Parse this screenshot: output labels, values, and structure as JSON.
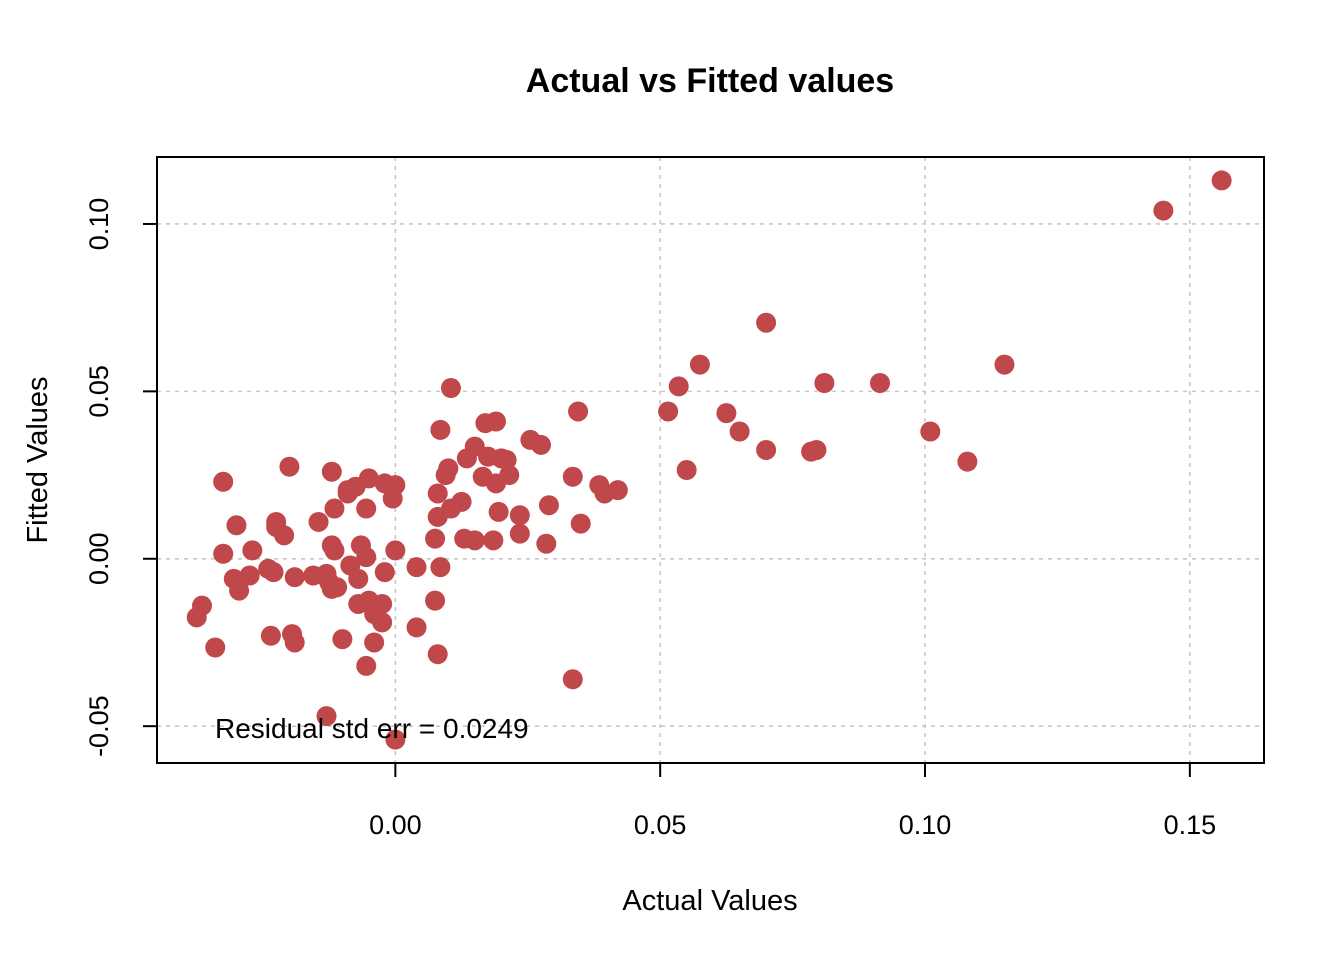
{
  "chart_data": {
    "type": "scatter",
    "title": "Actual vs Fitted values",
    "xlabel": "Actual Values",
    "ylabel": "Fitted Values",
    "xlim": [
      -0.045,
      0.164
    ],
    "ylim": [
      -0.061,
      0.12
    ],
    "x_ticks": [
      0.0,
      0.05,
      0.1,
      0.15
    ],
    "x_tick_labels": [
      "0.00",
      "0.05",
      "0.10",
      "0.15"
    ],
    "y_ticks": [
      -0.05,
      0.0,
      0.05,
      0.1
    ],
    "y_tick_labels": [
      "-0.05",
      "0.00",
      "0.05",
      "0.10"
    ],
    "grid": true,
    "point_color": "#C0474A",
    "annotation": "Residual std err =  0.0249",
    "points": [
      [
        0.156,
        0.113
      ],
      [
        0.145,
        0.104
      ],
      [
        0.115,
        0.058
      ],
      [
        0.108,
        0.029
      ],
      [
        0.101,
        0.038
      ],
      [
        0.0915,
        0.0525
      ],
      [
        0.081,
        0.0525
      ],
      [
        0.0795,
        0.0325
      ],
      [
        0.0785,
        0.032
      ],
      [
        0.07,
        0.0705
      ],
      [
        0.07,
        0.0325
      ],
      [
        0.065,
        0.038
      ],
      [
        0.0625,
        0.0435
      ],
      [
        0.0575,
        0.058
      ],
      [
        0.0535,
        0.0515
      ],
      [
        0.0515,
        0.044
      ],
      [
        0.055,
        0.0265
      ],
      [
        0.042,
        0.0205
      ],
      [
        0.0385,
        0.022
      ],
      [
        0.0395,
        0.0195
      ],
      [
        0.0345,
        0.044
      ],
      [
        0.035,
        0.0105
      ],
      [
        0.0335,
        0.0245
      ],
      [
        0.0335,
        -0.036
      ],
      [
        0.029,
        0.016
      ],
      [
        0.0285,
        0.0045
      ],
      [
        0.0255,
        0.0355
      ],
      [
        0.0275,
        0.034
      ],
      [
        0.0235,
        0.013
      ],
      [
        0.0235,
        0.0075
      ],
      [
        0.0215,
        0.025
      ],
      [
        0.021,
        0.0295
      ],
      [
        0.02,
        0.03
      ],
      [
        0.019,
        0.041
      ],
      [
        0.019,
        0.0225
      ],
      [
        0.0185,
        0.0055
      ],
      [
        0.0195,
        0.014
      ],
      [
        0.0175,
        0.0305
      ],
      [
        0.017,
        0.0405
      ],
      [
        0.0165,
        0.0245
      ],
      [
        0.015,
        0.0335
      ],
      [
        0.0135,
        0.03
      ],
      [
        0.0125,
        0.017
      ],
      [
        0.015,
        0.0055
      ],
      [
        0.013,
        0.006
      ],
      [
        0.0105,
        0.051
      ],
      [
        0.01,
        0.027
      ],
      [
        0.0095,
        0.025
      ],
      [
        0.0105,
        0.015
      ],
      [
        0.0085,
        0.0385
      ],
      [
        0.008,
        0.0195
      ],
      [
        0.008,
        0.0125
      ],
      [
        0.0075,
        0.006
      ],
      [
        0.0085,
        -0.0025
      ],
      [
        0.0075,
        -0.0125
      ],
      [
        0.008,
        -0.0285
      ],
      [
        0.004,
        -0.0025
      ],
      [
        0.004,
        -0.0205
      ],
      [
        0.0,
        0.0025
      ],
      [
        0.0,
        0.022
      ],
      [
        -0.0005,
        0.018
      ],
      [
        -0.002,
        0.0225
      ],
      [
        -0.002,
        -0.004
      ],
      [
        -0.0025,
        -0.0135
      ],
      [
        -0.0025,
        -0.019
      ],
      [
        -0.004,
        -0.025
      ],
      [
        -0.004,
        -0.0165
      ],
      [
        -0.005,
        0.024
      ],
      [
        -0.0055,
        0.015
      ],
      [
        -0.0055,
        0.0005
      ],
      [
        -0.005,
        -0.0125
      ],
      [
        -0.0055,
        -0.032
      ],
      [
        -0.0065,
        0.004
      ],
      [
        -0.007,
        -0.006
      ],
      [
        -0.007,
        -0.0135
      ],
      [
        -0.0075,
        0.0215
      ],
      [
        -0.0085,
        -0.002
      ],
      [
        -0.009,
        0.0195
      ],
      [
        -0.009,
        0.0205
      ],
      [
        -0.01,
        -0.024
      ],
      [
        -0.011,
        -0.0085
      ],
      [
        -0.0115,
        0.0025
      ],
      [
        -0.012,
        0.004
      ],
      [
        -0.0115,
        0.015
      ],
      [
        -0.012,
        0.026
      ],
      [
        -0.012,
        -0.009
      ],
      [
        -0.0125,
        -0.007
      ],
      [
        -0.013,
        -0.0045
      ],
      [
        -0.013,
        -0.047
      ],
      [
        -0.0145,
        0.011
      ],
      [
        -0.0155,
        -0.005
      ],
      [
        -0.019,
        -0.0055
      ],
      [
        -0.019,
        -0.025
      ],
      [
        -0.0195,
        -0.0225
      ],
      [
        -0.02,
        0.0275
      ],
      [
        -0.021,
        0.007
      ],
      [
        -0.0225,
        0.011
      ],
      [
        -0.0225,
        0.0095
      ],
      [
        -0.023,
        -0.004
      ],
      [
        -0.024,
        -0.003
      ],
      [
        -0.0235,
        -0.023
      ],
      [
        -0.027,
        0.0025
      ],
      [
        -0.0275,
        -0.005
      ],
      [
        -0.0295,
        -0.0095
      ],
      [
        -0.0305,
        -0.006
      ],
      [
        -0.03,
        0.01
      ],
      [
        -0.0325,
        0.023
      ],
      [
        -0.0325,
        0.0015
      ],
      [
        -0.034,
        -0.0265
      ],
      [
        -0.0365,
        -0.014
      ],
      [
        -0.0375,
        -0.0175
      ],
      [
        0.0,
        -0.054
      ]
    ]
  }
}
